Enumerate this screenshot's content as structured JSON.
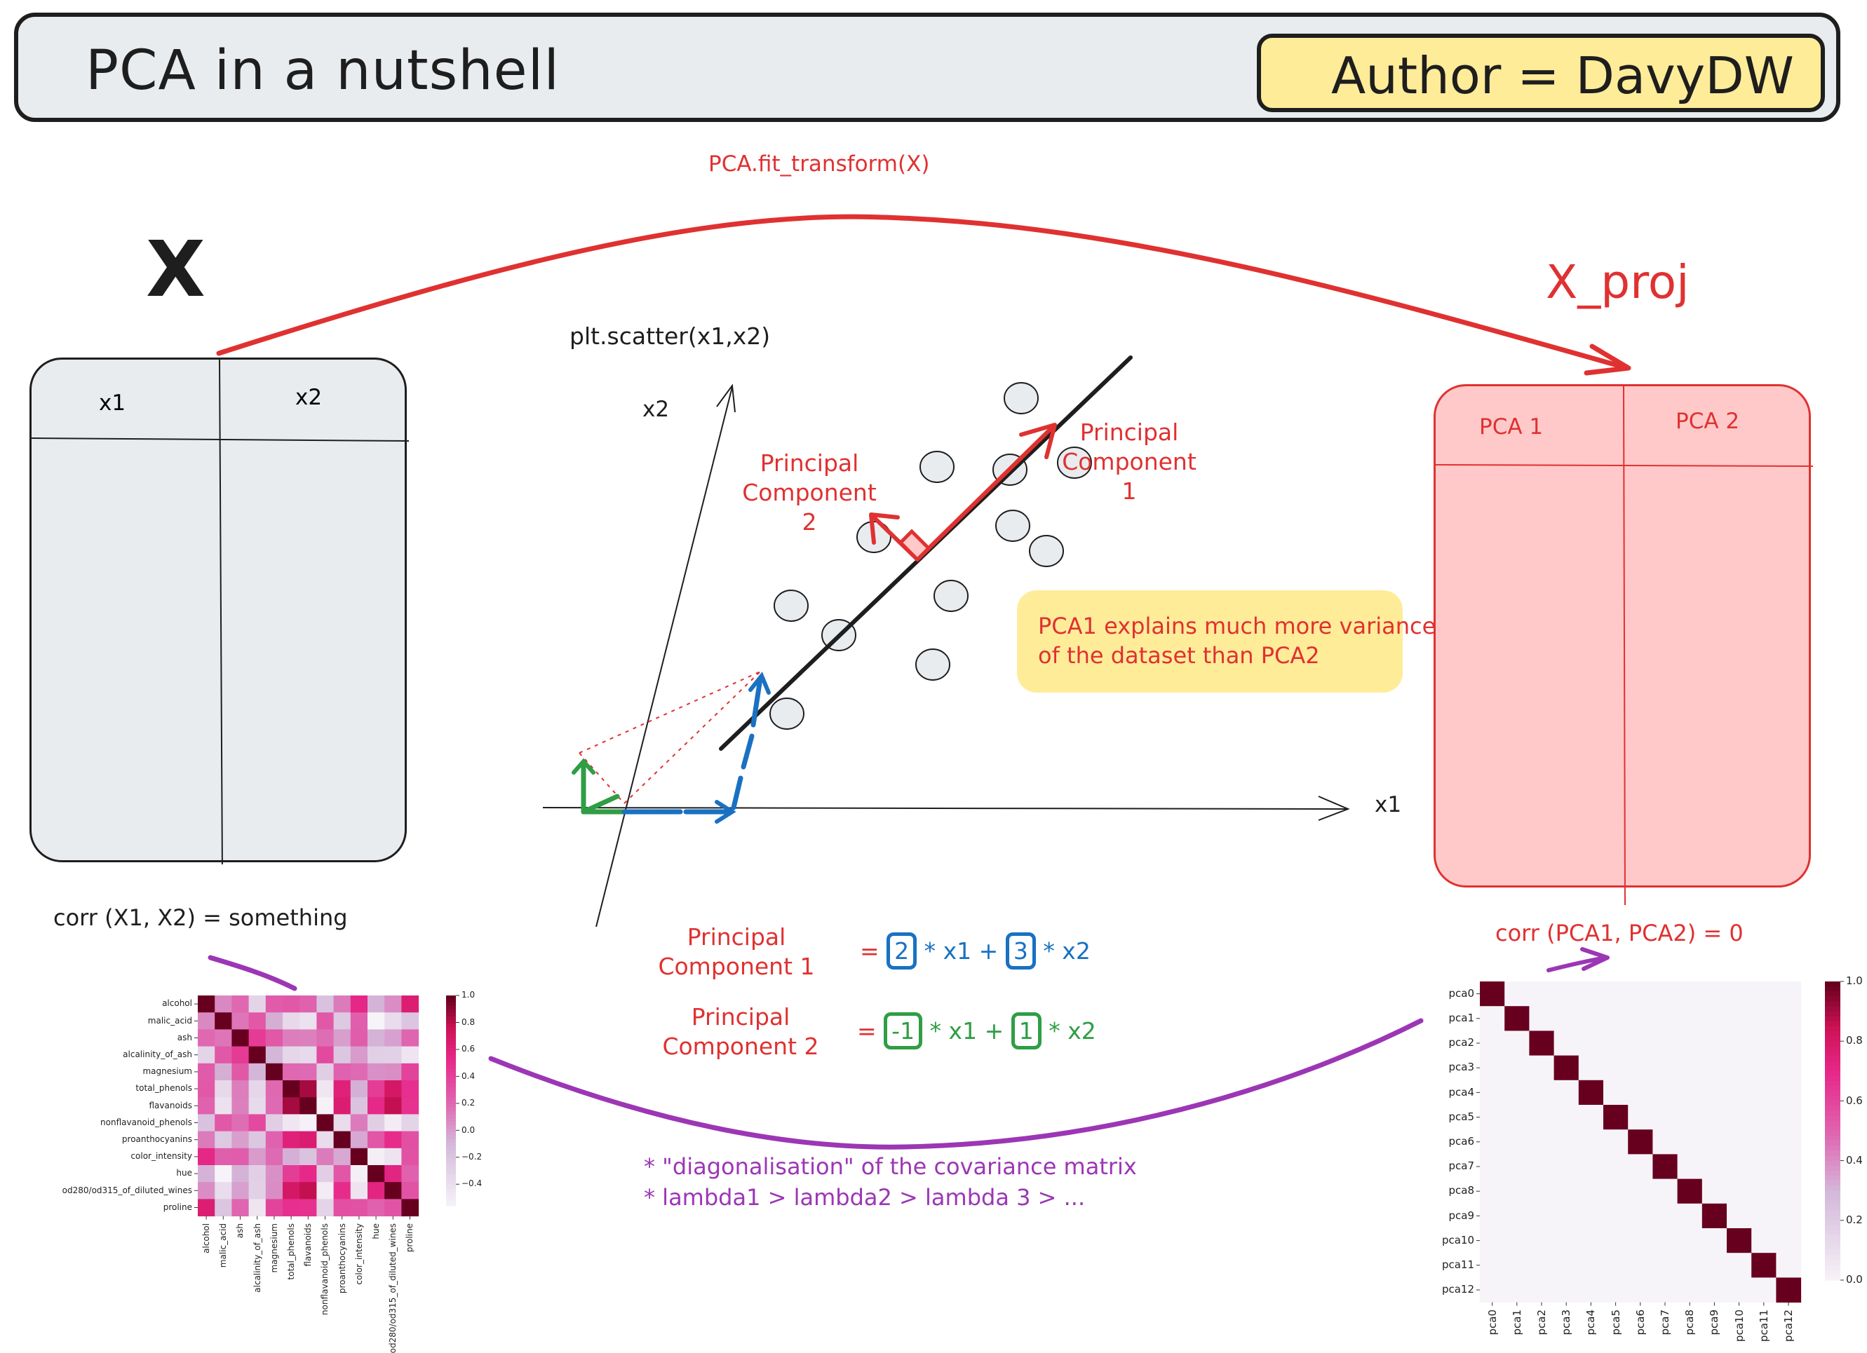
{
  "header": {
    "title": "PCA in a nutshell",
    "author": "Author = DavyDW"
  },
  "transform_label": "PCA.fit_transform(X)",
  "x_label": "X",
  "x_proj_label": "X_proj",
  "x_table": {
    "columns": [
      "x1",
      "x2"
    ]
  },
  "xproj_table": {
    "columns": [
      "PCA 1",
      "PCA 2"
    ]
  },
  "corr_left": "corr (X1, X2) = something",
  "corr_right": "corr (PCA1, PCA2) = 0",
  "scatter": {
    "label": "plt.scatter(x1,x2)",
    "x_axis": "x1",
    "y_axis": "x2",
    "pc1": [
      "Principal",
      "Component 1"
    ],
    "pc2": [
      "Principal",
      "Component 2"
    ]
  },
  "note": [
    "PCA1 explains much more variance",
    "of the dataset than PCA2"
  ],
  "formulas": {
    "pc1_label": [
      "Principal",
      "Component 1"
    ],
    "pc2_label": [
      "Principal",
      "Component 2"
    ],
    "eq": "=",
    "pc1_c1": "2",
    "pc1_c2": "3",
    "pc2_c1": "-1",
    "pc2_c2": "1",
    "times_x1_plus": "* x1 +",
    "times_x2": "* x2"
  },
  "bullets": [
    "* \"diagonalisation\" of the covariance matrix",
    "* lambda1 > lambda2 > lambda 3 > ..."
  ],
  "colors": {
    "red": "#e03131",
    "blue": "#1971c2",
    "green": "#2f9e44",
    "purple": "#9c36b5",
    "yellow": "#ffec99",
    "heat_max": "#67001f"
  },
  "chart_data": [
    {
      "type": "heatmap",
      "labels": [
        "alcohol",
        "malic_acid",
        "ash",
        "alcalinity_of_ash",
        "magnesium",
        "total_phenols",
        "flavanoids",
        "nonflavanoid_phenols",
        "proanthocyanins",
        "color_intensity",
        "hue",
        "od280/od315_of_diluted_wines",
        "proline"
      ],
      "values": [
        [
          1.0,
          0.09,
          0.21,
          -0.31,
          0.27,
          0.29,
          0.24,
          -0.16,
          0.14,
          0.55,
          -0.07,
          0.07,
          0.64
        ],
        [
          0.09,
          1.0,
          0.16,
          0.29,
          -0.05,
          -0.34,
          -0.41,
          0.29,
          -0.22,
          0.25,
          -0.56,
          -0.37,
          -0.19
        ],
        [
          0.21,
          0.16,
          1.0,
          0.44,
          0.29,
          0.13,
          0.12,
          0.19,
          0.01,
          0.26,
          -0.07,
          0.0,
          0.22
        ],
        [
          -0.31,
          0.29,
          0.44,
          1.0,
          -0.08,
          -0.32,
          -0.35,
          0.36,
          -0.2,
          0.02,
          -0.27,
          -0.28,
          -0.44
        ],
        [
          0.27,
          -0.05,
          0.29,
          -0.08,
          1.0,
          0.21,
          0.2,
          -0.26,
          0.24,
          0.2,
          0.06,
          0.07,
          0.39
        ],
        [
          0.29,
          -0.34,
          0.13,
          -0.32,
          0.21,
          1.0,
          0.86,
          -0.45,
          0.61,
          -0.06,
          0.43,
          0.7,
          0.5
        ],
        [
          0.24,
          -0.41,
          0.12,
          -0.35,
          0.2,
          0.86,
          1.0,
          -0.54,
          0.65,
          -0.17,
          0.54,
          0.79,
          0.49
        ],
        [
          -0.16,
          0.29,
          0.19,
          0.36,
          -0.26,
          -0.45,
          -0.54,
          1.0,
          -0.37,
          0.14,
          -0.26,
          -0.5,
          -0.31
        ],
        [
          0.14,
          -0.22,
          0.01,
          -0.2,
          0.24,
          0.61,
          0.65,
          -0.37,
          1.0,
          -0.03,
          0.3,
          0.52,
          0.33
        ],
        [
          0.55,
          0.25,
          0.26,
          0.02,
          0.2,
          -0.06,
          -0.17,
          0.14,
          -0.03,
          1.0,
          -0.52,
          -0.43,
          0.32
        ],
        [
          -0.07,
          -0.56,
          -0.07,
          -0.27,
          0.06,
          0.43,
          0.54,
          -0.26,
          0.3,
          -0.52,
          1.0,
          0.57,
          0.24
        ],
        [
          0.07,
          -0.37,
          0.0,
          -0.28,
          0.07,
          0.7,
          0.79,
          -0.5,
          0.52,
          -0.43,
          0.57,
          1.0,
          0.31
        ],
        [
          0.64,
          -0.19,
          0.22,
          -0.44,
          0.39,
          0.5,
          0.49,
          -0.31,
          0.33,
          0.32,
          0.24,
          0.31,
          1.0
        ]
      ],
      "colorbar_ticks": [
        1.0,
        0.8,
        0.6,
        0.4,
        0.2,
        0.0,
        -0.2,
        -0.4
      ],
      "vmin": -0.56,
      "vmax": 1.0
    },
    {
      "type": "heatmap",
      "labels": [
        "pca0",
        "pca1",
        "pca2",
        "pca3",
        "pca4",
        "pca5",
        "pca6",
        "pca7",
        "pca8",
        "pca9",
        "pca10",
        "pca11",
        "pca12"
      ],
      "values": "identity",
      "colorbar_ticks": [
        1.0,
        0.8,
        0.6,
        0.4,
        0.2,
        0.0
      ],
      "vmin": 0.0,
      "vmax": 1.0
    }
  ]
}
